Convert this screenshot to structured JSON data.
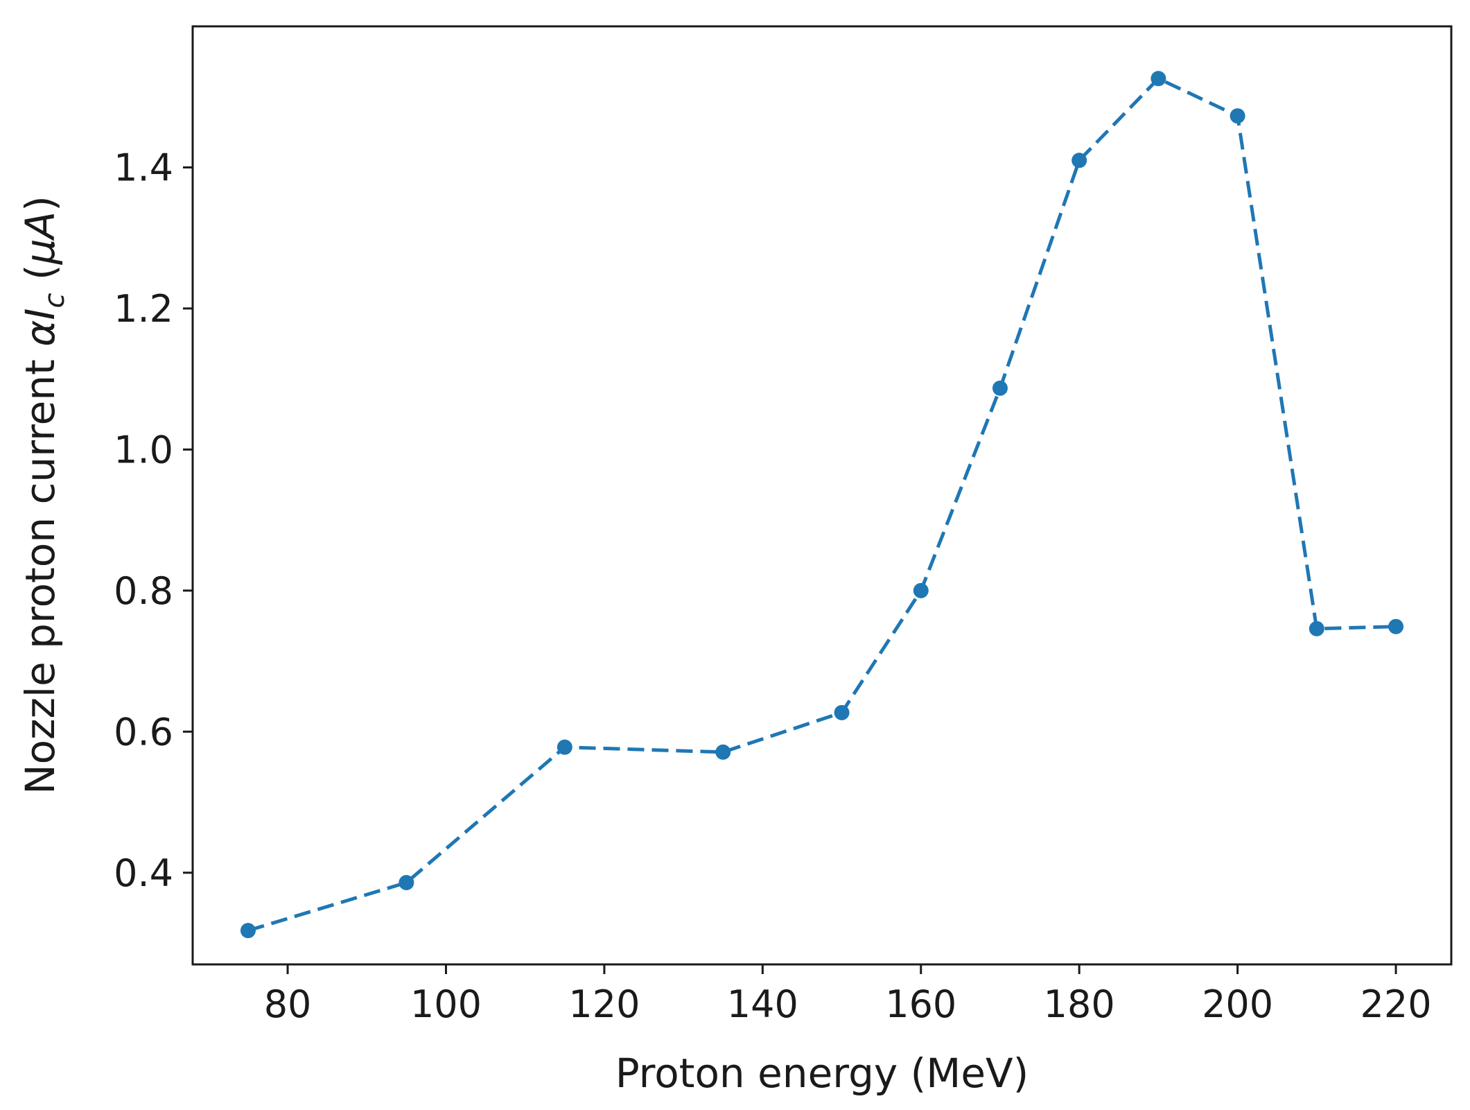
{
  "chart_data": {
    "type": "line",
    "title": "",
    "xlabel": "Proton energy (MeV)",
    "ylabel": {
      "prefix": "Nozzle proton current ",
      "alpha": "α",
      "I": "I",
      "sub": "c",
      "open": " (",
      "mu": "μ",
      "A": "A",
      "close": ")"
    },
    "xlim": [
      68,
      227
    ],
    "ylim": [
      0.27,
      1.6
    ],
    "xticks": [
      80,
      100,
      120,
      140,
      160,
      180,
      200,
      220
    ],
    "yticks": [
      0.4,
      0.6,
      0.8,
      1.0,
      1.2,
      1.4
    ],
    "xtick_labels": [
      "80",
      "100",
      "120",
      "140",
      "160",
      "180",
      "200",
      "220"
    ],
    "ytick_labels": [
      "0.4",
      "0.6",
      "0.8",
      "1.0",
      "1.2",
      "1.4"
    ],
    "grid": false,
    "series": [
      {
        "line_style": "dashed",
        "marker": "circle",
        "color": "#1f77b4",
        "x": [
          75,
          95,
          115,
          135,
          150,
          160,
          170,
          180,
          190,
          200,
          210,
          220
        ],
        "y": [
          0.318,
          0.386,
          0.578,
          0.571,
          0.627,
          0.8,
          1.087,
          1.41,
          1.526,
          1.473,
          0.746,
          0.749
        ]
      }
    ]
  }
}
